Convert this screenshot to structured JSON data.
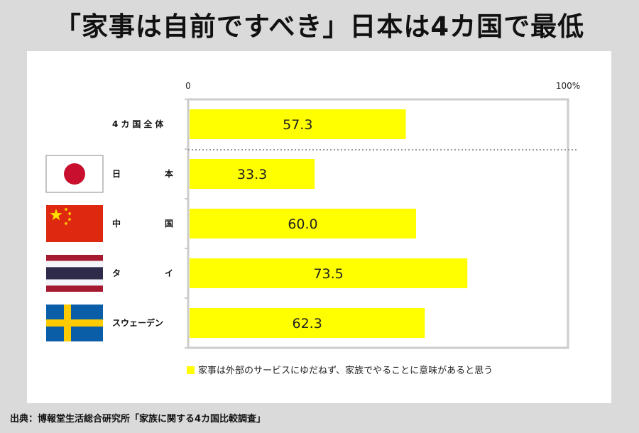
{
  "title": "「家事は自前ですべき」日本は4カ国で最低",
  "source": "出典：博報堂生活総合研究所「家族に関する4カ国比較調査」",
  "chart_data": {
    "type": "bar",
    "orientation": "horizontal",
    "categories": [
      "4カ国全体",
      "日本",
      "中国",
      "タイ",
      "スウェーデン"
    ],
    "category_flags": [
      "",
      "flag-japan-icon",
      "flag-china-icon",
      "flag-thailand-icon",
      "flag-sweden-icon"
    ],
    "series": [
      {
        "name": "家事は外部のサービスにゆだねず、家族でやることに意味があると思う",
        "values": [
          57.3,
          33.3,
          60.0,
          73.5,
          62.3
        ],
        "color": "#ffff00"
      }
    ],
    "value_labels": [
      "57.3",
      "33.3",
      "60.0",
      "73.5",
      "62.3"
    ],
    "xlim": [
      0,
      100
    ],
    "tick_labels": [
      "0",
      "100%"
    ],
    "grid": false,
    "legend_position": "bottom-right",
    "colors": {
      "bar": "#ffff00",
      "frame": "#cccccc",
      "divider": "#999999"
    }
  }
}
